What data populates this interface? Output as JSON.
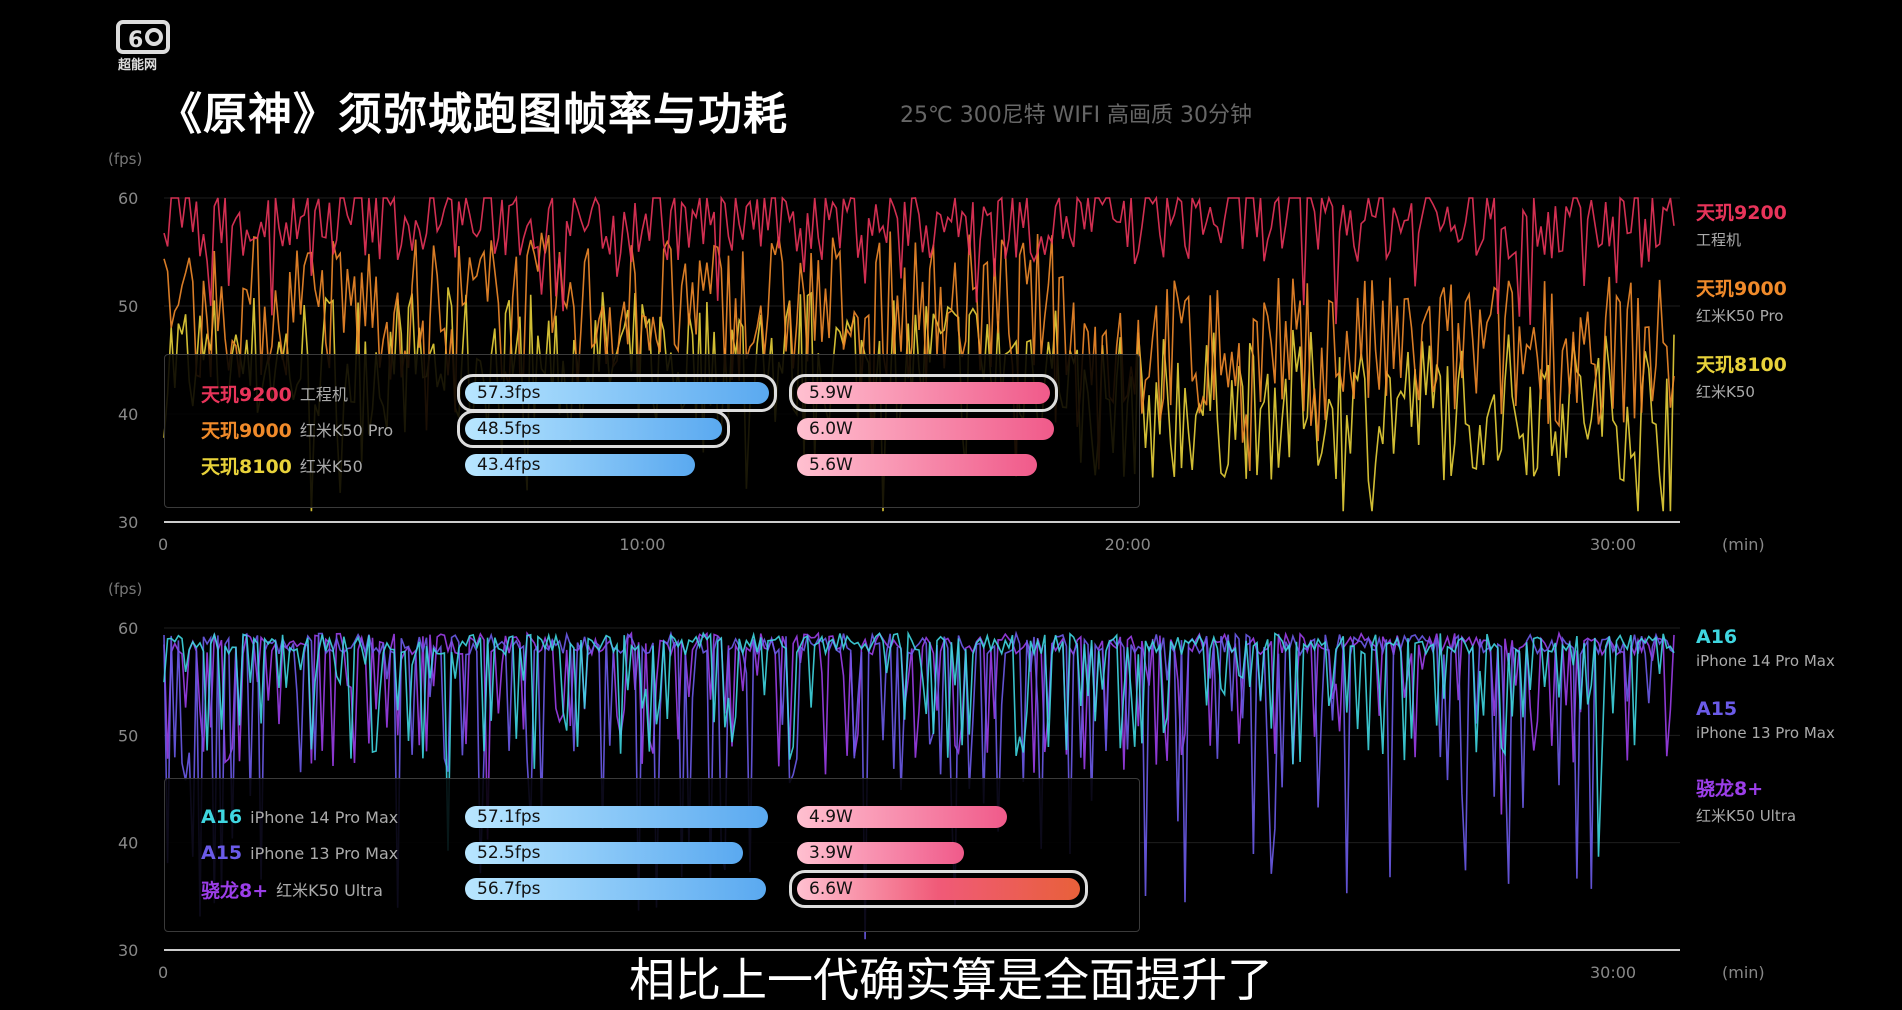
{
  "logo_text": "超能网",
  "title": "《原神》须弥城跑图帧率与功耗",
  "subtitle": "25℃ 300尼特 WIFI 高画质 30分钟",
  "caption": "相比上一代确实算是全面提升了",
  "chart_data": [
    {
      "type": "line",
      "ylabel": "(fps)",
      "xlabel": "(min)",
      "ylim": [
        30,
        60
      ],
      "yticks": [
        "60",
        "50",
        "40",
        "30"
      ],
      "xticks": [
        "0",
        "10:00",
        "20:00",
        "30:00"
      ],
      "series": [
        {
          "name": "天玑9200",
          "model": "工程机",
          "fps": "57.3fps",
          "power": "5.9W",
          "fps_value": 57.3,
          "power_value": 5.9,
          "color": "#e8345a",
          "highlight_fps": true,
          "highlight_power": true
        },
        {
          "name": "天玑9000",
          "model": "红米K50 Pro",
          "fps": "48.5fps",
          "power": "6.0W",
          "fps_value": 48.5,
          "power_value": 6.0,
          "color": "#f08a2a",
          "highlight_fps": true,
          "highlight_power": false
        },
        {
          "name": "天玑8100",
          "model": "红米K50",
          "fps": "43.4fps",
          "power": "5.6W",
          "fps_value": 43.4,
          "power_value": 5.6,
          "color": "#e8d23a",
          "highlight_fps": false,
          "highlight_power": false
        }
      ]
    },
    {
      "type": "line",
      "ylabel": "(fps)",
      "xlabel": "(min)",
      "ylim": [
        30,
        60
      ],
      "yticks": [
        "60",
        "50",
        "40",
        "30"
      ],
      "xticks": [
        "0",
        "30:00"
      ],
      "series": [
        {
          "name": "A16",
          "model": "iPhone 14 Pro Max",
          "fps": "57.1fps",
          "power": "4.9W",
          "fps_value": 57.1,
          "power_value": 4.9,
          "color": "#3fd6e0",
          "highlight_fps": false,
          "highlight_power": false
        },
        {
          "name": "A15",
          "model": "iPhone 13 Pro Max",
          "fps": "52.5fps",
          "power": "3.9W",
          "fps_value": 52.5,
          "power_value": 3.9,
          "color": "#6b5be8",
          "highlight_fps": false,
          "highlight_power": false
        },
        {
          "name": "骁龙8+",
          "model": "红米K50 Ultra",
          "fps": "56.7fps",
          "power": "6.6W",
          "fps_value": 56.7,
          "power_value": 6.6,
          "color": "#9b3ee8",
          "highlight_fps": false,
          "highlight_power": true
        }
      ]
    }
  ]
}
